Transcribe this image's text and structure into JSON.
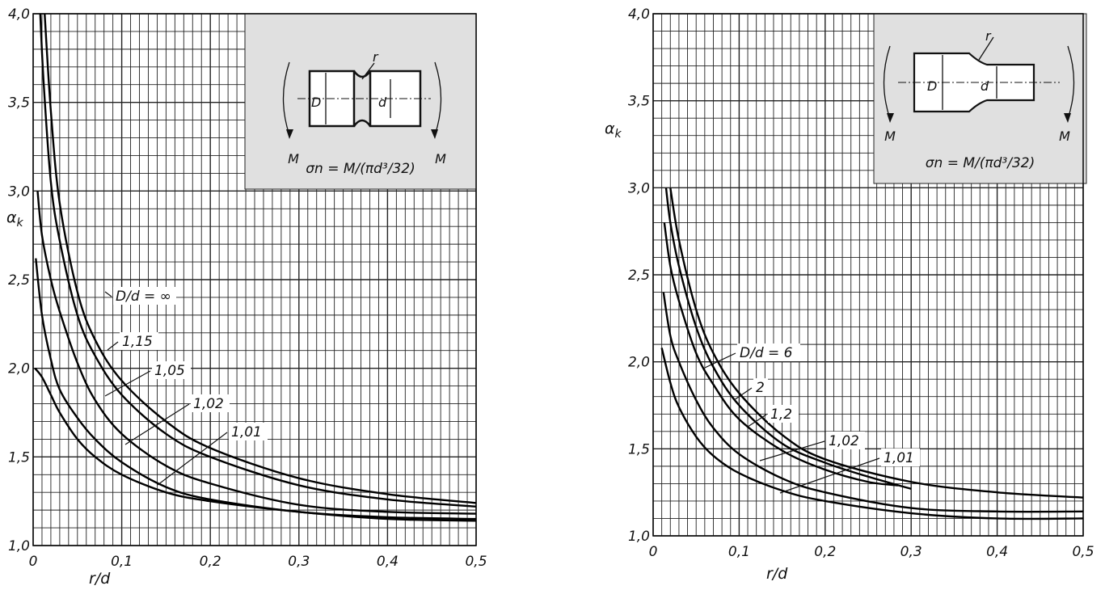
{
  "chart_data": [
    {
      "type": "line",
      "xlabel": "r/d",
      "ylabel": "α_k",
      "xlim": [
        0,
        0.5
      ],
      "ylim": [
        1.0,
        4.0
      ],
      "x_ticks": [
        "0",
        "0,1",
        "0,2",
        "0,3",
        "0,4",
        "0,5"
      ],
      "y_ticks": [
        "1,0",
        "1,5",
        "2,0",
        "2,5",
        "3,0",
        "3,5",
        "4,0"
      ],
      "grid": true,
      "inset": {
        "formula": "σn = M/(πd³/32)",
        "labels": [
          "D",
          "d",
          "r",
          "M",
          "M"
        ]
      },
      "series": [
        {
          "name": "D/d = ∞",
          "x": [
            0.013,
            0.02,
            0.03,
            0.05,
            0.07,
            0.1,
            0.15,
            0.2,
            0.3,
            0.4,
            0.5
          ],
          "y": [
            4.0,
            3.45,
            2.93,
            2.43,
            2.16,
            1.93,
            1.7,
            1.55,
            1.38,
            1.29,
            1.24
          ]
        },
        {
          "name": "1,15",
          "x": [
            0.008,
            0.012,
            0.02,
            0.03,
            0.05,
            0.07,
            0.1,
            0.15,
            0.2,
            0.3,
            0.4,
            0.5
          ],
          "y": [
            4.0,
            3.6,
            3.05,
            2.72,
            2.3,
            2.07,
            1.85,
            1.63,
            1.5,
            1.34,
            1.26,
            1.22
          ]
        },
        {
          "name": "1,05",
          "x": [
            0.005,
            0.01,
            0.02,
            0.03,
            0.05,
            0.07,
            0.1,
            0.15,
            0.2,
            0.3,
            0.4,
            0.5
          ],
          "y": [
            3.0,
            2.75,
            2.5,
            2.32,
            2.03,
            1.82,
            1.63,
            1.45,
            1.35,
            1.23,
            1.19,
            1.18
          ]
        },
        {
          "name": "1,02",
          "x": [
            0.003,
            0.01,
            0.02,
            0.03,
            0.05,
            0.07,
            0.1,
            0.15,
            0.2,
            0.3,
            0.4,
            0.5
          ],
          "y": [
            2.62,
            2.3,
            2.05,
            1.88,
            1.72,
            1.6,
            1.47,
            1.33,
            1.26,
            1.19,
            1.16,
            1.15
          ]
        },
        {
          "name": "1,01",
          "x": [
            0.002,
            0.01,
            0.02,
            0.03,
            0.05,
            0.07,
            0.1,
            0.15,
            0.2,
            0.3,
            0.4,
            0.5
          ],
          "y": [
            2.0,
            1.95,
            1.85,
            1.75,
            1.6,
            1.5,
            1.4,
            1.3,
            1.25,
            1.19,
            1.15,
            1.14
          ]
        }
      ]
    },
    {
      "type": "line",
      "xlabel": "r/d",
      "ylabel": "α_k",
      "xlim": [
        0,
        0.5
      ],
      "ylim": [
        1.0,
        4.0
      ],
      "x_ticks": [
        "0",
        "0,1",
        "0,2",
        "0,3",
        "0,4",
        "0,5"
      ],
      "y_ticks": [
        "1,0",
        "1,5",
        "2,0",
        "2,5",
        "3,0",
        "3,5",
        "4,0"
      ],
      "grid": true,
      "inset": {
        "formula": "σn = M/(πd³/32)",
        "labels": [
          "D",
          "d",
          "r",
          "M",
          "M"
        ]
      },
      "series": [
        {
          "name": "D/d = 6",
          "x": [
            0.02,
            0.03,
            0.05,
            0.07,
            0.1,
            0.15,
            0.2,
            0.3,
            0.4,
            0.5
          ],
          "y": [
            3.0,
            2.7,
            2.3,
            2.05,
            1.82,
            1.58,
            1.44,
            1.31,
            1.25,
            1.22
          ]
        },
        {
          "name": "2",
          "x": [
            0.015,
            0.02,
            0.03,
            0.05,
            0.07,
            0.1,
            0.15,
            0.2,
            0.25,
            0.3
          ],
          "y": [
            3.0,
            2.8,
            2.55,
            2.2,
            1.97,
            1.75,
            1.53,
            1.42,
            1.34,
            1.27
          ]
        },
        {
          "name": "1,2",
          "x": [
            0.013,
            0.02,
            0.03,
            0.05,
            0.07,
            0.1,
            0.15,
            0.2,
            0.25,
            0.285
          ],
          "y": [
            2.8,
            2.55,
            2.35,
            2.05,
            1.87,
            1.67,
            1.49,
            1.38,
            1.31,
            1.29
          ]
        },
        {
          "name": "1,02",
          "x": [
            0.012,
            0.02,
            0.03,
            0.05,
            0.07,
            0.1,
            0.15,
            0.2,
            0.3,
            0.4,
            0.5
          ],
          "y": [
            2.4,
            2.15,
            2.0,
            1.78,
            1.62,
            1.47,
            1.33,
            1.25,
            1.16,
            1.14,
            1.14
          ]
        },
        {
          "name": "1,01",
          "x": [
            0.01,
            0.02,
            0.03,
            0.05,
            0.07,
            0.1,
            0.15,
            0.2,
            0.3,
            0.4,
            0.5
          ],
          "y": [
            2.08,
            1.88,
            1.74,
            1.57,
            1.46,
            1.36,
            1.26,
            1.2,
            1.13,
            1.1,
            1.1
          ]
        }
      ]
    }
  ]
}
